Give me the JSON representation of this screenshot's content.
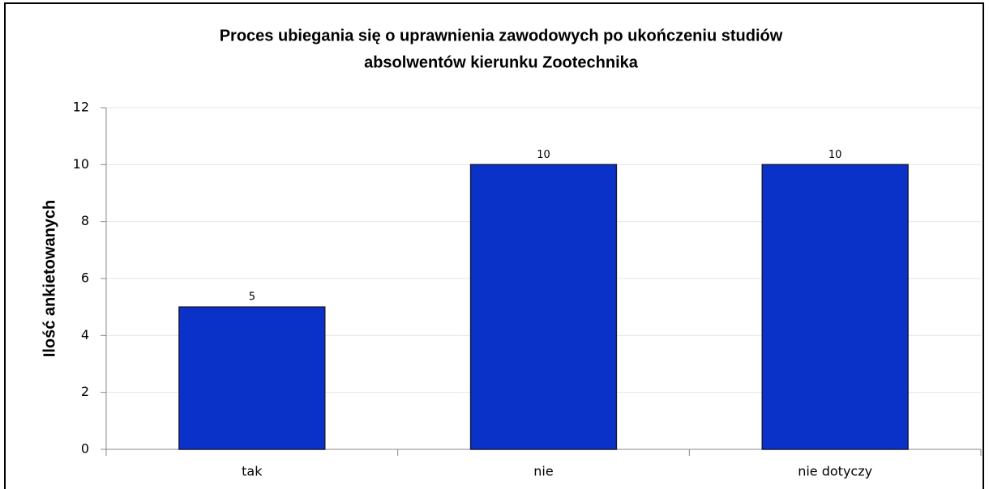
{
  "chart_data": {
    "type": "bar",
    "title": [
      "Proces ubiegania się o uprawnienia zawodowych po ukończeniu studiów",
      "absolwentów kierunku Zootechnika"
    ],
    "y_label": "Ilość ankietowanych",
    "categories": [
      "tak",
      "nie",
      "nie dotyczy"
    ],
    "values": [
      5,
      10,
      10
    ],
    "color": "#0a32c8",
    "ylim": [
      0,
      12
    ],
    "yticks": [
      0,
      2,
      4,
      6,
      8,
      10,
      12
    ],
    "grid": true
  }
}
